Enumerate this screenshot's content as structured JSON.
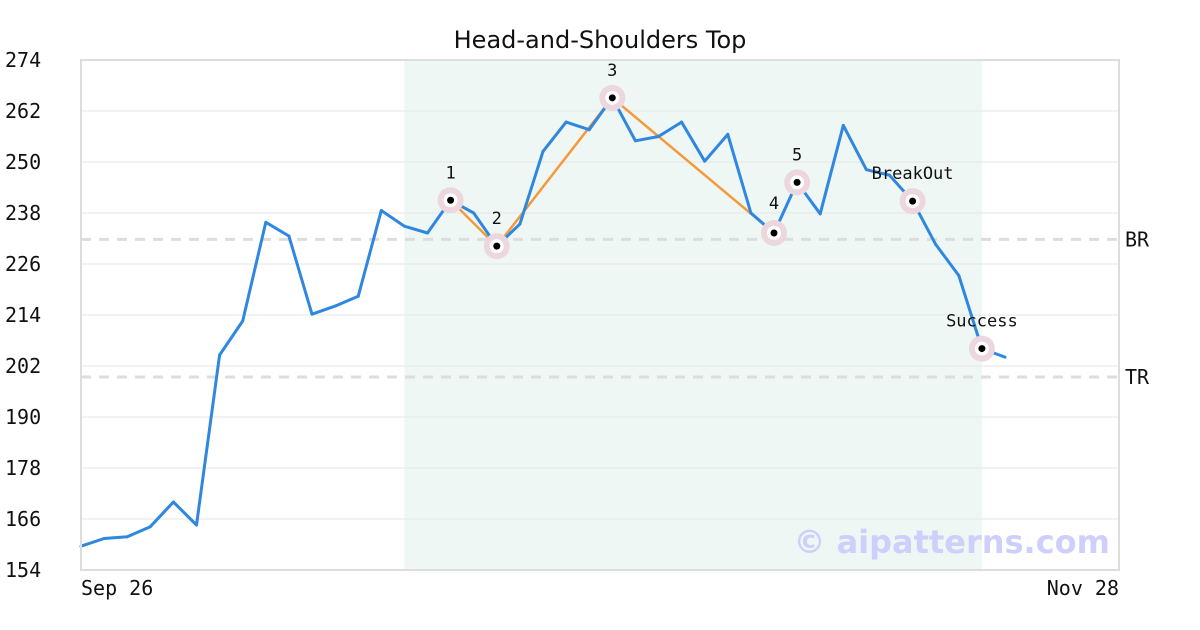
{
  "chart_data": {
    "type": "line",
    "title": "Head-and-Shoulders Top",
    "xlabel": "",
    "ylabel": "",
    "x_start_label": "Sep 26",
    "x_end_label": "Nov 28",
    "ylim": [
      154,
      274
    ],
    "y_ticks": [
      154,
      166,
      178,
      190,
      202,
      214,
      226,
      238,
      250,
      262,
      274
    ],
    "grid": "horizontal",
    "series": [
      {
        "values": [
          159.6,
          161.4,
          161.8,
          164.2,
          170.0,
          164.6,
          204.6,
          212.6,
          235.8,
          232.6,
          214.2,
          216.1,
          218.4,
          238.6,
          234.9,
          233.3,
          241.0,
          238.0,
          230.2,
          235.4,
          252.5,
          259.4,
          257.6,
          265.1,
          255.0,
          256.0,
          259.4,
          250.2,
          256.5,
          238.0,
          233.3,
          245.2,
          237.8,
          258.6,
          248.2,
          246.9,
          240.8,
          230.6,
          223.3,
          206.1,
          204.1
        ]
      }
    ],
    "pattern_points": [
      {
        "label": "1",
        "index": 16,
        "value": 241.0
      },
      {
        "label": "2",
        "index": 18,
        "value": 230.2
      },
      {
        "label": "3",
        "index": 23,
        "value": 265.1
      },
      {
        "label": "4",
        "index": 30,
        "value": 233.3
      },
      {
        "label": "5",
        "index": 31,
        "value": 245.2
      },
      {
        "label": "BreakOut",
        "index": 36,
        "value": 240.8
      },
      {
        "label": "Success",
        "index": 39,
        "value": 206.1
      }
    ],
    "shaded_range": {
      "start_index": 14,
      "end_index": 39
    },
    "levels": [
      {
        "label": "BR",
        "value": 231.8
      },
      {
        "label": "TR",
        "value": 199.4
      }
    ],
    "colors": {
      "price_line": "#2f87e0",
      "pattern_line": "#f59a3c",
      "shade": "#eef7f3",
      "marker_halo": "#ecd7de",
      "marker_dot": "#000000",
      "level_line": "#dddddd",
      "grid": "#e6e6e6",
      "frame": "#dddddd",
      "watermark": "#cfcffc"
    }
  },
  "watermark": "© aipatterns.com"
}
